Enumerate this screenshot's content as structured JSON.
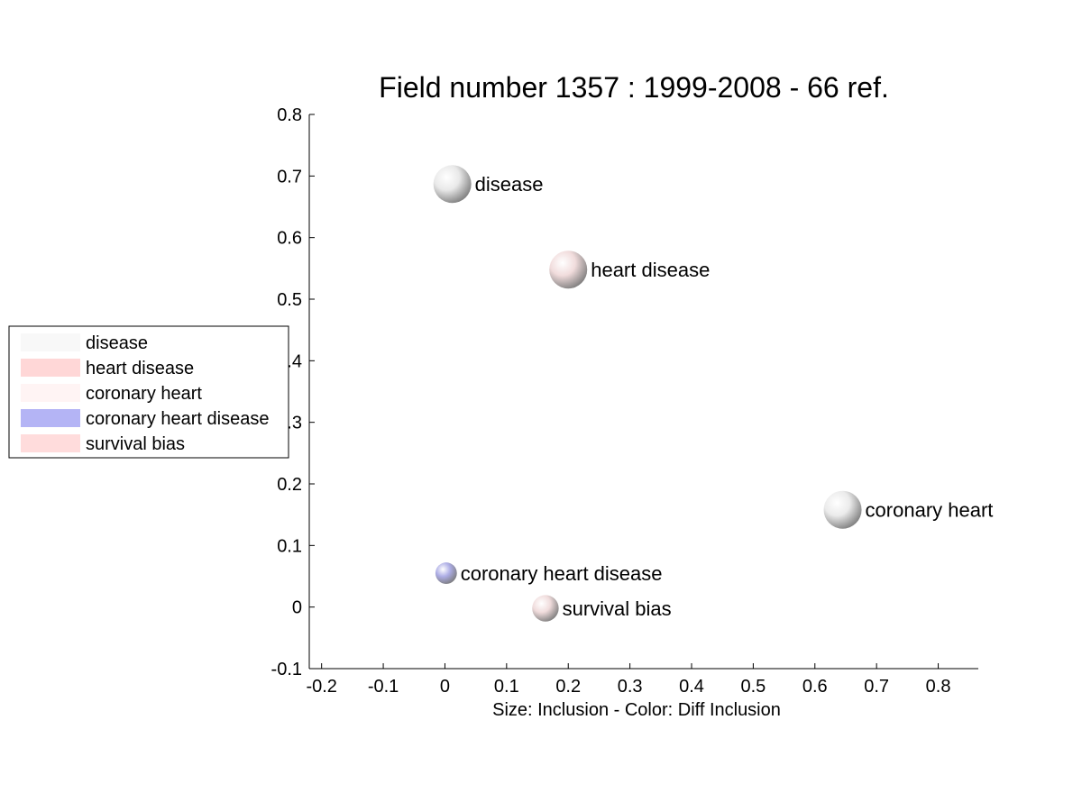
{
  "chart_data": {
    "type": "scatter",
    "title": "Field number 1357 : 1999-2008  - 66 ref.",
    "xlabel": "Size: Inclusion - Color: Diff Inclusion",
    "ylabel": "",
    "xlim": [
      -0.22,
      0.865
    ],
    "ylim": [
      -0.1,
      0.8
    ],
    "xticks": [
      -0.2,
      -0.1,
      0,
      0.1,
      0.2,
      0.3,
      0.4,
      0.5,
      0.6,
      0.7,
      0.8
    ],
    "xtick_labels": [
      "-0.2",
      "-0.1",
      "0",
      "0.1",
      "0.2",
      "0.3",
      "0.4",
      "0.5",
      "0.6",
      "0.7",
      "0.8"
    ],
    "yticks": [
      -0.1,
      0,
      0.1,
      0.2,
      0.3,
      0.4,
      0.5,
      0.6,
      0.7,
      0.8
    ],
    "ytick_labels": [
      "-0.1",
      "0",
      "0.1",
      "0.2",
      "0.3",
      "0.4",
      "0.5",
      "0.6",
      "0.7",
      "0.8"
    ],
    "grid": false,
    "legend_position": "left",
    "points": [
      {
        "label": "disease",
        "x": 0.012,
        "y": 0.687,
        "size": 3,
        "color": "#e9e9e9",
        "legend_color": "#f8f8f8"
      },
      {
        "label": "heart disease",
        "x": 0.2,
        "y": 0.548,
        "size": 3,
        "color": "#f1dcdc",
        "legend_color": "#ffd7d7"
      },
      {
        "label": "coronary heart",
        "x": 0.645,
        "y": 0.158,
        "size": 3,
        "color": "#ebebeb",
        "legend_color": "#fff4f4"
      },
      {
        "label": "coronary heart disease",
        "x": 0.002,
        "y": 0.055,
        "size": 1.7,
        "color": "#aeaee6",
        "legend_color": "#b4b4f5"
      },
      {
        "label": "survival bias",
        "x": 0.163,
        "y": -0.002,
        "size": 2.1,
        "color": "#f0dcdc",
        "legend_color": "#ffdcdc"
      }
    ]
  }
}
